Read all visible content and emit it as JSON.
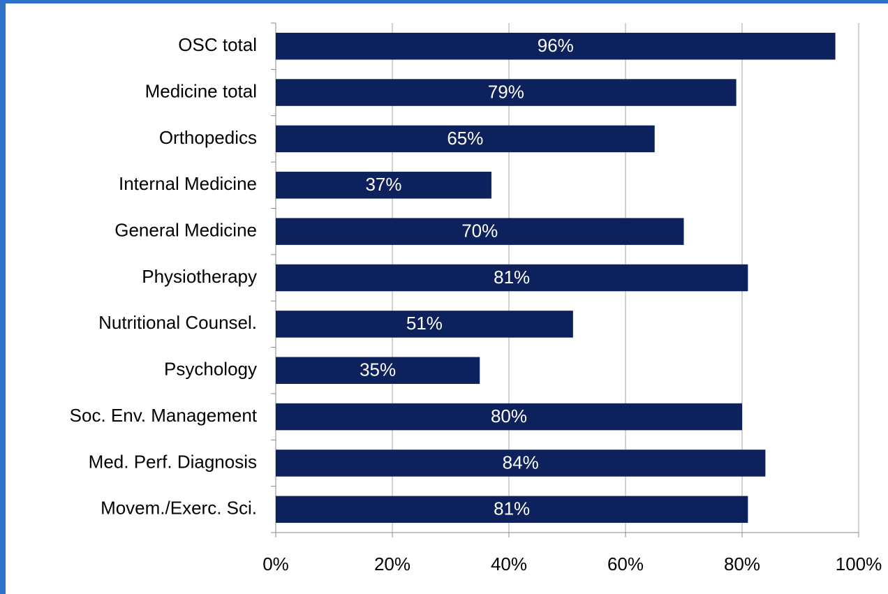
{
  "chart_data": {
    "type": "bar",
    "orientation": "horizontal",
    "categories": [
      "OSC total",
      "Medicine total",
      "Orthopedics",
      "Internal Medicine",
      "General Medicine",
      "Physiotherapy",
      "Nutritional Counsel.",
      "Psychology",
      "Soc. Env. Management",
      "Med. Perf. Diagnosis",
      "Movem./Exerc. Sci."
    ],
    "values": [
      96,
      79,
      65,
      37,
      70,
      81,
      51,
      35,
      80,
      84,
      81
    ],
    "value_labels": [
      "96%",
      "79%",
      "65%",
      "37%",
      "70%",
      "81%",
      "51%",
      "35%",
      "80%",
      "84%",
      "81%"
    ],
    "color": "#0d215c",
    "xlim": [
      0,
      100
    ],
    "xticks": [
      {
        "value": 0,
        "label": "0%"
      },
      {
        "value": 20,
        "label": "20%"
      },
      {
        "value": 40,
        "label": "40%"
      },
      {
        "value": 60,
        "label": "60%"
      },
      {
        "value": 80,
        "label": "80%"
      },
      {
        "value": 100,
        "label": "100%"
      }
    ],
    "grid": true
  }
}
